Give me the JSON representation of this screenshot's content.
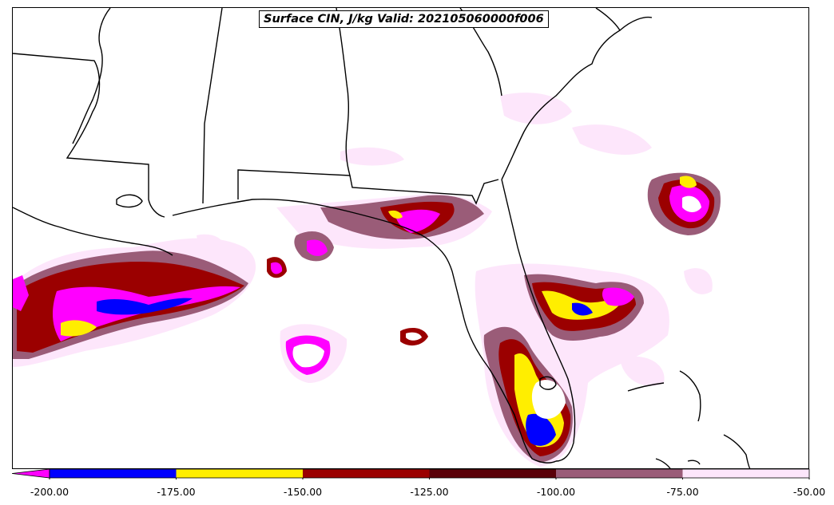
{
  "title": "Surface CIN, J/kg Valid: 202105060000f006",
  "colorbar": {
    "ticks": [
      "-200.00",
      "-175.00",
      "-150.00",
      "-125.00",
      "-100.00",
      "-75.00",
      "-50.00"
    ],
    "segments": [
      {
        "from": -200,
        "to": -175,
        "color": "#0000ff"
      },
      {
        "from": -175,
        "to": -150,
        "color": "#ffee00"
      },
      {
        "from": -150,
        "to": -125,
        "color": "#9b0000"
      },
      {
        "from": -125,
        "to": -100,
        "color": "#5a0008"
      },
      {
        "from": -100,
        "to": -75,
        "color": "#9a5c78"
      },
      {
        "from": -75,
        "to": -50,
        "color": "#fde6fb"
      }
    ],
    "extend_color": "#ff00ff"
  },
  "colors": {
    "below_min": "#ff00ff",
    "blue": "#0000ff",
    "yellow": "#ffee00",
    "dark_red": "#9b0000",
    "maroon": "#5a0008",
    "mauve": "#9a5c78",
    "pale_pink": "#fde6fb",
    "outline": "#000000"
  }
}
